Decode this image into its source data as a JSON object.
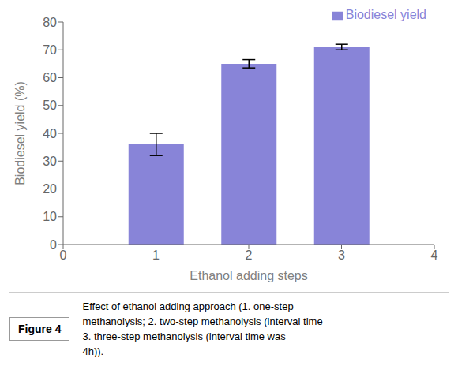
{
  "chart_data": {
    "type": "bar",
    "xlabel": "Ethanol adding steps",
    "ylabel": "Biodiesel yield (%)",
    "x": [
      1,
      2,
      3
    ],
    "series": [
      {
        "name": "Biodiesel yield",
        "color": "#8884d8",
        "values": [
          36.0,
          65.0,
          71.0
        ],
        "errors": [
          4.0,
          1.5,
          1.0
        ]
      }
    ],
    "xlim": [
      0,
      4
    ],
    "xticks": [
      0,
      1,
      2,
      3,
      4
    ],
    "ylim": [
      0,
      80
    ],
    "yticks": [
      0,
      10,
      20,
      30,
      40,
      50,
      60,
      70,
      80
    ],
    "grid": false,
    "legend": "upper-right",
    "annotations": [
      "Figure 4",
      "Effect of ethanol adding approach (1.  one-step",
      "methanolysis; 2. two-step methanolysis (interval time",
      "3. three-step methanolysis (interval time was",
      "4h))."
    ]
  }
}
